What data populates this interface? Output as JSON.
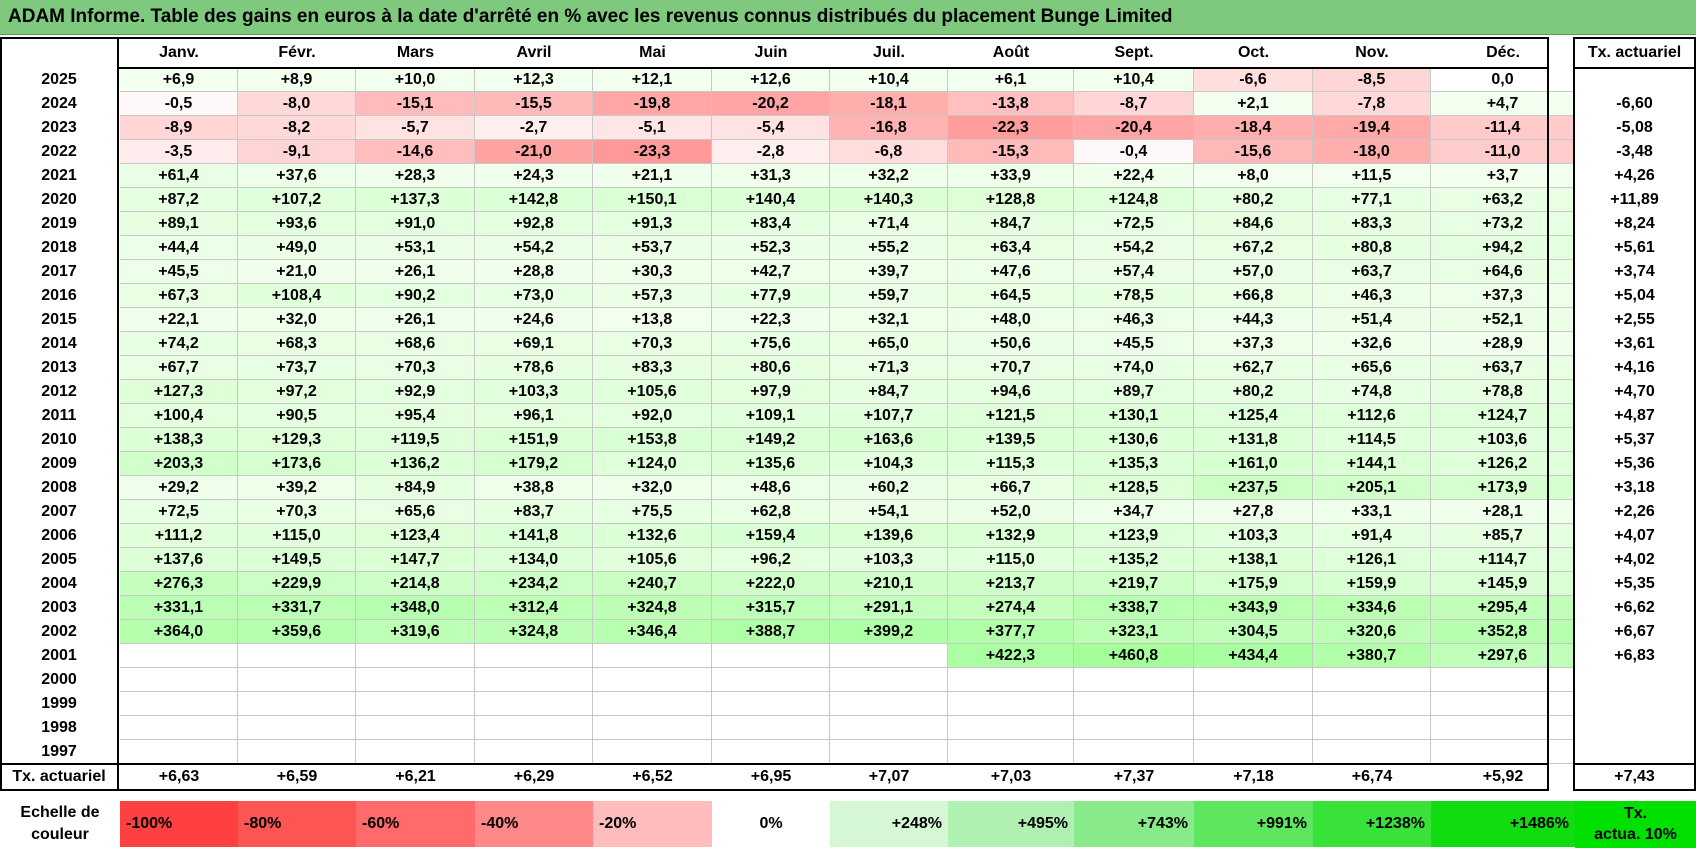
{
  "title": "ADAM Informe. Table des gains en euros à la date d'arrêté en % avec les revenus connus distribués du placement Bunge Limited",
  "months": [
    "Janv.",
    "Févr.",
    "Mars",
    "Avril",
    "Mai",
    "Juin",
    "Juil.",
    "Août",
    "Sept.",
    "Oct.",
    "Nov.",
    "Déc."
  ],
  "tx_header": "Tx. actuariel",
  "rows": [
    {
      "year": "2025",
      "values": [
        "+6,9",
        "+8,9",
        "+10,0",
        "+12,3",
        "+12,1",
        "+12,6",
        "+10,4",
        "+6,1",
        "+10,4",
        "-6,6",
        "-8,5",
        "0,0"
      ],
      "tx": ""
    },
    {
      "year": "2024",
      "values": [
        "-0,5",
        "-8,0",
        "-15,1",
        "-15,5",
        "-19,8",
        "-20,2",
        "-18,1",
        "-13,8",
        "-8,7",
        "+2,1",
        "-7,8",
        "+4,7"
      ],
      "tx": "-6,60"
    },
    {
      "year": "2023",
      "values": [
        "-8,9",
        "-8,2",
        "-5,7",
        "-2,7",
        "-5,1",
        "-5,4",
        "-16,8",
        "-22,3",
        "-20,4",
        "-18,4",
        "-19,4",
        "-11,4"
      ],
      "tx": "-5,08"
    },
    {
      "year": "2022",
      "values": [
        "-3,5",
        "-9,1",
        "-14,6",
        "-21,0",
        "-23,3",
        "-2,8",
        "-6,8",
        "-15,3",
        "-0,4",
        "-15,6",
        "-18,0",
        "-11,0"
      ],
      "tx": "-3,48"
    },
    {
      "year": "2021",
      "values": [
        "+61,4",
        "+37,6",
        "+28,3",
        "+24,3",
        "+21,1",
        "+31,3",
        "+32,2",
        "+33,9",
        "+22,4",
        "+8,0",
        "+11,5",
        "+3,7"
      ],
      "tx": "+4,26"
    },
    {
      "year": "2020",
      "values": [
        "+87,2",
        "+107,2",
        "+137,3",
        "+142,8",
        "+150,1",
        "+140,4",
        "+140,3",
        "+128,8",
        "+124,8",
        "+80,2",
        "+77,1",
        "+63,2"
      ],
      "tx": "+11,89"
    },
    {
      "year": "2019",
      "values": [
        "+89,1",
        "+93,6",
        "+91,0",
        "+92,8",
        "+91,3",
        "+83,4",
        "+71,4",
        "+84,7",
        "+72,5",
        "+84,6",
        "+83,3",
        "+73,2"
      ],
      "tx": "+8,24"
    },
    {
      "year": "2018",
      "values": [
        "+44,4",
        "+49,0",
        "+53,1",
        "+54,2",
        "+53,7",
        "+52,3",
        "+55,2",
        "+63,4",
        "+54,2",
        "+67,2",
        "+80,8",
        "+94,2"
      ],
      "tx": "+5,61"
    },
    {
      "year": "2017",
      "values": [
        "+45,5",
        "+21,0",
        "+26,1",
        "+28,8",
        "+30,3",
        "+42,7",
        "+39,7",
        "+47,6",
        "+57,4",
        "+57,0",
        "+63,7",
        "+64,6"
      ],
      "tx": "+3,74"
    },
    {
      "year": "2016",
      "values": [
        "+67,3",
        "+108,4",
        "+90,2",
        "+73,0",
        "+57,3",
        "+77,9",
        "+59,7",
        "+64,5",
        "+78,5",
        "+66,8",
        "+46,3",
        "+37,3"
      ],
      "tx": "+5,04"
    },
    {
      "year": "2015",
      "values": [
        "+22,1",
        "+32,0",
        "+26,1",
        "+24,6",
        "+13,8",
        "+22,3",
        "+32,1",
        "+48,0",
        "+46,3",
        "+44,3",
        "+51,4",
        "+52,1"
      ],
      "tx": "+2,55"
    },
    {
      "year": "2014",
      "values": [
        "+74,2",
        "+68,3",
        "+68,6",
        "+69,1",
        "+70,3",
        "+75,6",
        "+65,0",
        "+50,6",
        "+45,5",
        "+37,3",
        "+32,6",
        "+28,9"
      ],
      "tx": "+3,61"
    },
    {
      "year": "2013",
      "values": [
        "+67,7",
        "+73,7",
        "+70,3",
        "+78,6",
        "+83,3",
        "+80,6",
        "+71,3",
        "+70,7",
        "+74,0",
        "+62,7",
        "+65,6",
        "+63,7"
      ],
      "tx": "+4,16"
    },
    {
      "year": "2012",
      "values": [
        "+127,3",
        "+97,2",
        "+92,9",
        "+103,3",
        "+105,6",
        "+97,9",
        "+84,7",
        "+94,6",
        "+89,7",
        "+80,2",
        "+74,8",
        "+78,8"
      ],
      "tx": "+4,70"
    },
    {
      "year": "2011",
      "values": [
        "+100,4",
        "+90,5",
        "+95,4",
        "+96,1",
        "+92,0",
        "+109,1",
        "+107,7",
        "+121,5",
        "+130,1",
        "+125,4",
        "+112,6",
        "+124,7"
      ],
      "tx": "+4,87"
    },
    {
      "year": "2010",
      "values": [
        "+138,3",
        "+129,3",
        "+119,5",
        "+151,9",
        "+153,8",
        "+149,2",
        "+163,6",
        "+139,5",
        "+130,6",
        "+131,8",
        "+114,5",
        "+103,6"
      ],
      "tx": "+5,37"
    },
    {
      "year": "2009",
      "values": [
        "+203,3",
        "+173,6",
        "+136,2",
        "+179,2",
        "+124,0",
        "+135,6",
        "+104,3",
        "+115,3",
        "+135,3",
        "+161,0",
        "+144,1",
        "+126,2"
      ],
      "tx": "+5,36"
    },
    {
      "year": "2008",
      "values": [
        "+29,2",
        "+39,2",
        "+84,9",
        "+38,8",
        "+32,0",
        "+48,6",
        "+60,2",
        "+66,7",
        "+128,5",
        "+237,5",
        "+205,1",
        "+173,9"
      ],
      "tx": "+3,18"
    },
    {
      "year": "2007",
      "values": [
        "+72,5",
        "+70,3",
        "+65,6",
        "+83,7",
        "+75,5",
        "+62,8",
        "+54,1",
        "+52,0",
        "+34,7",
        "+27,8",
        "+33,1",
        "+28,1"
      ],
      "tx": "+2,26"
    },
    {
      "year": "2006",
      "values": [
        "+111,2",
        "+115,0",
        "+123,4",
        "+141,8",
        "+132,6",
        "+159,4",
        "+139,6",
        "+132,9",
        "+123,9",
        "+103,3",
        "+91,4",
        "+85,7"
      ],
      "tx": "+4,07"
    },
    {
      "year": "2005",
      "values": [
        "+137,6",
        "+149,5",
        "+147,7",
        "+134,0",
        "+105,6",
        "+96,2",
        "+103,3",
        "+115,0",
        "+135,2",
        "+138,1",
        "+126,1",
        "+114,7"
      ],
      "tx": "+4,02"
    },
    {
      "year": "2004",
      "values": [
        "+276,3",
        "+229,9",
        "+214,8",
        "+234,2",
        "+240,7",
        "+222,0",
        "+210,1",
        "+213,7",
        "+219,7",
        "+175,9",
        "+159,9",
        "+145,9"
      ],
      "tx": "+5,35"
    },
    {
      "year": "2003",
      "values": [
        "+331,1",
        "+331,7",
        "+348,0",
        "+312,4",
        "+324,8",
        "+315,7",
        "+291,1",
        "+274,4",
        "+338,7",
        "+343,9",
        "+334,6",
        "+295,4"
      ],
      "tx": "+6,62"
    },
    {
      "year": "2002",
      "values": [
        "+364,0",
        "+359,6",
        "+319,6",
        "+324,8",
        "+346,4",
        "+388,7",
        "+399,2",
        "+377,7",
        "+323,1",
        "+304,5",
        "+320,6",
        "+352,8"
      ],
      "tx": "+6,67"
    },
    {
      "year": "2001",
      "values": [
        "",
        "",
        "",
        "",
        "",
        "",
        "",
        "+422,3",
        "+460,8",
        "+434,4",
        "+380,7",
        "+297,6"
      ],
      "tx": "+6,83"
    },
    {
      "year": "2000",
      "values": [
        "",
        "",
        "",
        "",
        "",
        "",
        "",
        "",
        "",
        "",
        "",
        ""
      ],
      "tx": ""
    },
    {
      "year": "1999",
      "values": [
        "",
        "",
        "",
        "",
        "",
        "",
        "",
        "",
        "",
        "",
        "",
        ""
      ],
      "tx": ""
    },
    {
      "year": "1998",
      "values": [
        "",
        "",
        "",
        "",
        "",
        "",
        "",
        "",
        "",
        "",
        "",
        ""
      ],
      "tx": ""
    },
    {
      "year": "1997",
      "values": [
        "",
        "",
        "",
        "",
        "",
        "",
        "",
        "",
        "",
        "",
        "",
        ""
      ],
      "tx": ""
    }
  ],
  "footer": {
    "label": "Tx. actuariel",
    "values": [
      "+6,63",
      "+6,59",
      "+6,21",
      "+6,29",
      "+6,52",
      "+6,95",
      "+7,07",
      "+7,03",
      "+7,37",
      "+7,18",
      "+6,74",
      "+5,92"
    ],
    "total": "+7,43"
  },
  "scale": {
    "label_line1": "Echelle de",
    "label_line2": "couleur",
    "stops": [
      {
        "label": "-100%",
        "color": "#ff4040",
        "align": "left"
      },
      {
        "label": "-80%",
        "color": "#ff5454",
        "align": "left"
      },
      {
        "label": "-60%",
        "color": "#ff6a6a",
        "align": "left"
      },
      {
        "label": "-40%",
        "color": "#ff8888",
        "align": "left"
      },
      {
        "label": "-20%",
        "color": "#ffbcbc",
        "align": "left"
      },
      {
        "label": "0%",
        "color": "#ffffff",
        "align": "center"
      },
      {
        "label": "+248%",
        "color": "#d6f7d6",
        "align": "right"
      },
      {
        "label": "+495%",
        "color": "#b0f0b0",
        "align": "right"
      },
      {
        "label": "+743%",
        "color": "#88ea88",
        "align": "right"
      },
      {
        "label": "+991%",
        "color": "#5ee65e",
        "align": "right"
      },
      {
        "label": "+1238%",
        "color": "#38e238",
        "align": "right"
      },
      {
        "label": "+1486%",
        "color": "#10dc10",
        "align": "right"
      }
    ],
    "tx_label_line1": "Tx.",
    "tx_label_line2": "actua. 10%",
    "tx_color": "#00e000"
  }
}
